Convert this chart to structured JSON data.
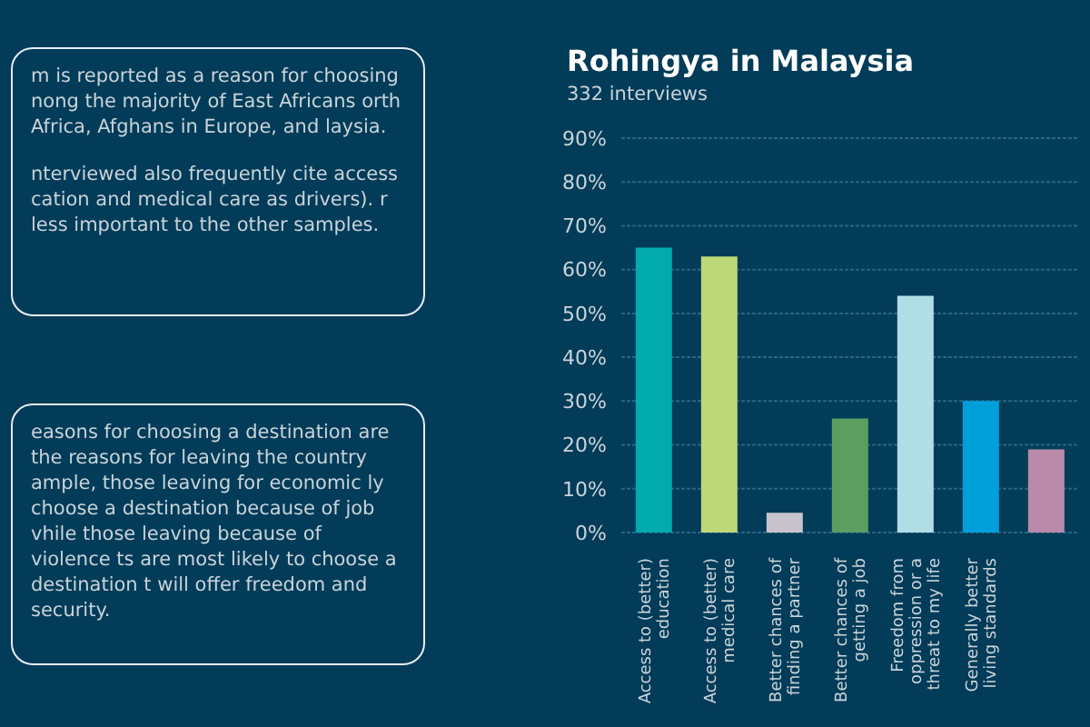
{
  "chart_data": {
    "type": "bar",
    "title": "Rohingya in Malaysia",
    "subtitle": "332 interviews",
    "categories": [
      "Access to (better) education",
      "Access to (better) medical care",
      "Better chances of finding a partner",
      "Better chances of getting a job",
      "Freedom from oppression or a threat to my life",
      "Generally better living standards",
      null
    ],
    "values": [
      65,
      63,
      4.5,
      26,
      54,
      30,
      19
    ],
    "colors": [
      "#00aaad",
      "#bcd879",
      "#c6c3cc",
      "#5b9e5f",
      "#b1dee4",
      "#009fda",
      "#b98aaa"
    ],
    "ylim": [
      0,
      90
    ],
    "yticks": [
      {
        "value": 0,
        "label": "0%"
      },
      {
        "value": 10,
        "label": "10%"
      },
      {
        "value": 20,
        "label": "20%"
      },
      {
        "value": 30,
        "label": "30%"
      },
      {
        "value": 40,
        "label": "40%"
      },
      {
        "value": 50,
        "label": "50%"
      },
      {
        "value": 60,
        "label": "60%"
      },
      {
        "value": 70,
        "label": "70%"
      },
      {
        "value": 80,
        "label": "80%"
      },
      {
        "value": 90,
        "label": "90%"
      }
    ],
    "grid": "y",
    "annotations": [
      "m is reported as a reason for choosing nong the majority of East Africans orth Africa, Afghans in Europe, and laysia.",
      "nterviewed also frequently cite access cation and medical care as drivers). r less important to the other samples.",
      "easons for choosing a destination are the reasons for leaving the country ample, those leaving for economic ly choose a destination because of job vhile those leaving because of violence ts are most likely to choose a destination t will offer freedom and security."
    ]
  }
}
